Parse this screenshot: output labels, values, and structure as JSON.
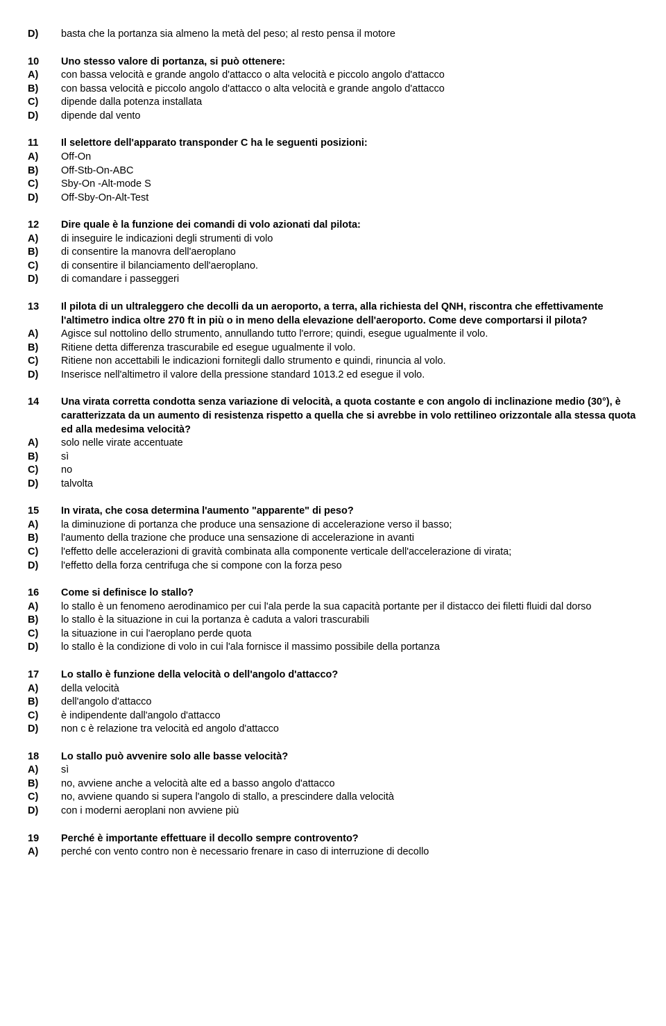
{
  "partial": {
    "label": "D)",
    "text": "basta che la portanza sia almeno la metà del peso; al resto pensa il motore"
  },
  "questions": [
    {
      "num": "10",
      "q": "Uno stesso valore di portanza, si può ottenere:",
      "opts": [
        {
          "l": "A)",
          "t": "con bassa velocità e grande angolo d'attacco o alta velocità e piccolo angolo d'attacco"
        },
        {
          "l": "B)",
          "t": "con bassa velocità e piccolo angolo d'attacco o alta velocità e grande angolo d'attacco"
        },
        {
          "l": "C)",
          "t": "dipende dalla potenza installata"
        },
        {
          "l": "D)",
          "t": "dipende dal vento"
        }
      ]
    },
    {
      "num": "11",
      "q": "Il selettore dell'apparato transponder C ha le seguenti posizioni:",
      "opts": [
        {
          "l": "A)",
          "t": "Off-On"
        },
        {
          "l": "B)",
          "t": "Off-Stb-On-ABC"
        },
        {
          "l": "C)",
          "t": "Sby-On -Alt-mode S"
        },
        {
          "l": "D)",
          "t": "Off-Sby-On-Alt-Test"
        }
      ]
    },
    {
      "num": "12",
      "q": "Dire quale è la funzione dei comandi di volo azionati dal pilota:",
      "opts": [
        {
          "l": "A)",
          "t": "di inseguire le indicazioni degli strumenti di volo"
        },
        {
          "l": "B)",
          "t": "di consentire la manovra dell'aeroplano"
        },
        {
          "l": "C)",
          "t": "di consentire il bilanciamento dell'aeroplano."
        },
        {
          "l": "D)",
          "t": "di comandare i passeggeri"
        }
      ]
    },
    {
      "num": "13",
      "q": "Il pilota di un ultraleggero che decolli da un aeroporto, a terra, alla richiesta del QNH, riscontra che effettivamente l'altimetro indica oltre 270 ft in più o in meno della elevazione dell'aeroporto. Come deve comportarsi il pilota?",
      "opts": [
        {
          "l": "A)",
          "t": "Agisce sul nottolino dello strumento, annullando tutto l'errore; quindi, esegue ugualmente il volo."
        },
        {
          "l": "B)",
          "t": "Ritiene detta differenza trascurabile ed esegue ugualmente il volo."
        },
        {
          "l": "C)",
          "t": "Ritiene non accettabili le indicazioni fornitegli dallo strumento e quindi, rinuncia al volo."
        },
        {
          "l": "D)",
          "t": "Inserisce nell'altimetro il valore della pressione standard 1013.2 ed esegue il volo."
        }
      ]
    },
    {
      "num": "14",
      "q": "Una virata corretta condotta senza variazione di velocità, a quota costante e con angolo di inclinazione medio (30°), è caratterizzata da un aumento di resistenza rispetto a quella che si avrebbe in volo rettilineo orizzontale alla stessa quota ed alla medesima velocità?",
      "opts": [
        {
          "l": "A)",
          "t": "solo nelle virate accentuate"
        },
        {
          "l": "B)",
          "t": "sì"
        },
        {
          "l": "C)",
          "t": "no"
        },
        {
          "l": "D)",
          "t": "talvolta"
        }
      ]
    },
    {
      "num": "15",
      "q": "In virata, che cosa determina l'aumento \"apparente\" di peso?",
      "opts": [
        {
          "l": "A)",
          "t": "la diminuzione di portanza che produce una sensazione di accelerazione verso il basso;"
        },
        {
          "l": "B)",
          "t": "l'aumento della trazione che produce una sensazione di accelerazione in avanti"
        },
        {
          "l": "C)",
          "t": "l'effetto delle accelerazioni di gravità combinata alla componente verticale dell'accelerazione di virata;"
        },
        {
          "l": "D)",
          "t": "l'effetto della forza centrifuga che si compone con la forza peso"
        }
      ]
    },
    {
      "num": "16",
      "q": "Come si definisce lo stallo?",
      "opts": [
        {
          "l": "A)",
          "t": "lo stallo è un fenomeno aerodinamico per cui l'ala perde la sua capacità portante per il distacco dei filetti fluidi dal dorso"
        },
        {
          "l": "B)",
          "t": "lo stallo è la situazione in cui la portanza è caduta a valori trascurabili"
        },
        {
          "l": "C)",
          "t": "la situazione in cui l'aeroplano perde quota"
        },
        {
          "l": "D)",
          "t": "lo stallo è la condizione di volo in cui l'ala fornisce il massimo possibile della portanza"
        }
      ]
    },
    {
      "num": "17",
      "q": "Lo stallo è funzione della velocità o dell'angolo d'attacco?",
      "opts": [
        {
          "l": "A)",
          "t": "della velocità"
        },
        {
          "l": "B)",
          "t": "dell'angolo d'attacco"
        },
        {
          "l": "C)",
          "t": "è indipendente dall'angolo d'attacco"
        },
        {
          "l": "D)",
          "t": "non c è relazione tra velocità ed angolo d'attacco"
        }
      ]
    },
    {
      "num": "18",
      "q": "Lo stallo può avvenire solo alle basse velocità?",
      "opts": [
        {
          "l": "A)",
          "t": "sì"
        },
        {
          "l": "B)",
          "t": "no, avviene anche a velocità alte ed a basso angolo d'attacco"
        },
        {
          "l": "C)",
          "t": "no, avviene quando si supera l'angolo di stallo, a prescindere dalla velocità"
        },
        {
          "l": "D)",
          "t": "con i moderni aeroplani non avviene più"
        }
      ]
    },
    {
      "num": "19",
      "q": "Perché è importante effettuare il decollo sempre controvento?",
      "opts": [
        {
          "l": "A)",
          "t": "perché con vento contro non è necessario frenare in caso di interruzione di decollo"
        }
      ]
    }
  ]
}
